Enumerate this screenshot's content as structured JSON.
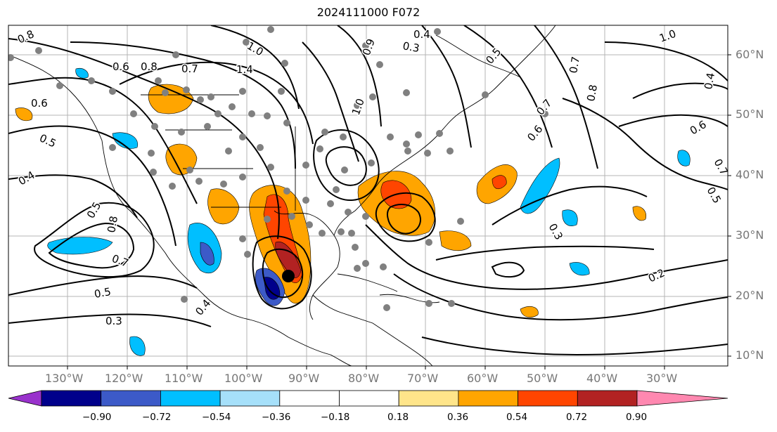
{
  "title": "2024111000 F072",
  "map": {
    "lat_labels": [
      "60°N",
      "50°N",
      "40°N",
      "30°N",
      "20°N",
      "10°N"
    ],
    "lon_labels": [
      "130°W",
      "120°W",
      "110°W",
      "100°W",
      "90°W",
      "80°W",
      "70°W",
      "60°W",
      "50°W",
      "40°W",
      "30°W"
    ],
    "contour_labels": [
      "0.8",
      "0.6",
      "0.8",
      "0.7",
      "1.4",
      "1.0",
      "0.6",
      "0.5",
      "0.4",
      "0.5",
      "0.8",
      "0.7",
      "0.5",
      "0.3",
      "0.4",
      "1.0",
      "0.9",
      "0.3",
      "0.4",
      "0.5",
      "0.7",
      "1.0",
      "0.7",
      "0.8",
      "0.4",
      "0.6",
      "0.6",
      "0.7",
      "0.5",
      "0.3",
      "0.2"
    ],
    "storm_marker": "tropical-cyclone-position",
    "colors": {
      "land_outline": "#000000",
      "contour": "#000000",
      "station_dots": "#808080",
      "grid": "#b0b0b0"
    }
  },
  "colorbar": {
    "ticks": [
      "−0.90",
      "−0.72",
      "−0.54",
      "−0.36",
      "−0.18",
      "0.18",
      "0.36",
      "0.54",
      "0.72",
      "0.90"
    ],
    "colors": [
      "#9932CC",
      "#00008B",
      "#3C5AC8",
      "#00BFFF",
      "#A6E0FA",
      "#FFFFFF",
      "#FFE58A",
      "#FFA500",
      "#FF4500",
      "#B22222",
      "#FF88B0"
    ]
  }
}
